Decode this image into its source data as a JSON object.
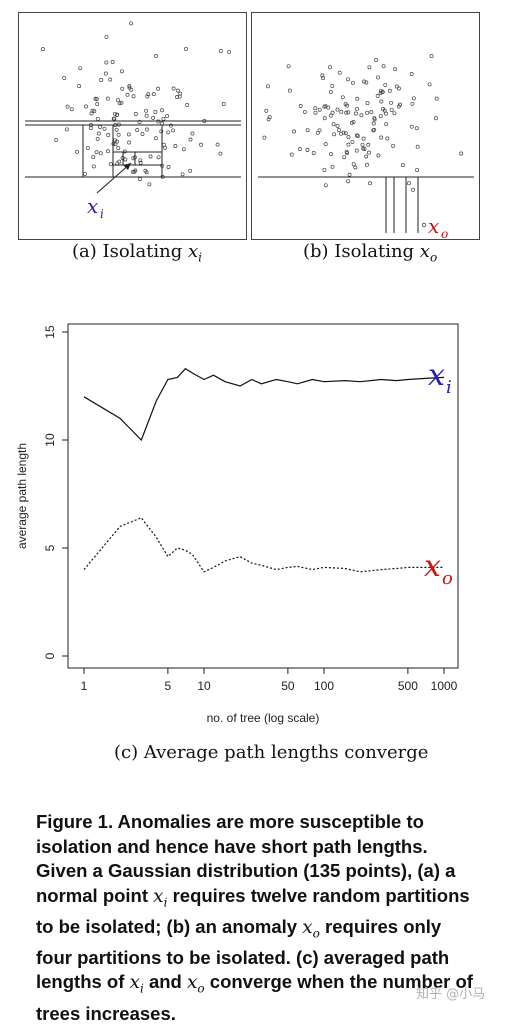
{
  "panels": {
    "a": {
      "point_label": "x",
      "point_sub": "i",
      "caption_prefix": "(a) Isolating ",
      "caption_var": "x",
      "caption_sub": "i",
      "label_color": "#2222aa"
    },
    "b": {
      "point_label": "x",
      "point_sub": "o",
      "caption_prefix": "(b) Isolating ",
      "caption_var": "x",
      "caption_sub": "o",
      "label_color": "#cc1111"
    }
  },
  "chart_data": {
    "type": "line",
    "xlabel": "no. of tree (log scale)",
    "ylabel": "average path length",
    "xscale": "log",
    "xlim": [
      1,
      1000
    ],
    "ylim": [
      0,
      15
    ],
    "xticks": [
      "1",
      "5",
      "10",
      "50",
      "100",
      "500",
      "1000"
    ],
    "xtick_values": [
      1,
      5,
      10,
      50,
      100,
      500,
      1000
    ],
    "yticks": [
      "0",
      "5",
      "10",
      "15"
    ],
    "ytick_values": [
      0,
      5,
      10,
      15
    ],
    "series": [
      {
        "name": "x_i",
        "style": "solid",
        "x": [
          1,
          2,
          3,
          4,
          5,
          6,
          7,
          8,
          10,
          12,
          15,
          20,
          25,
          30,
          40,
          50,
          60,
          80,
          100,
          150,
          200,
          300,
          400,
          500,
          700,
          1000
        ],
        "y": [
          12.0,
          11.0,
          10.0,
          11.8,
          12.8,
          12.9,
          13.3,
          13.1,
          12.8,
          13.0,
          12.7,
          12.5,
          12.8,
          12.6,
          12.8,
          12.7,
          12.6,
          12.8,
          12.7,
          12.75,
          12.7,
          12.8,
          12.75,
          12.8,
          12.85,
          12.9
        ]
      },
      {
        "name": "x_o",
        "style": "dashed",
        "x": [
          1,
          2,
          3,
          4,
          5,
          6,
          7,
          8,
          10,
          12,
          15,
          20,
          25,
          30,
          40,
          50,
          60,
          80,
          100,
          150,
          200,
          300,
          400,
          500,
          700,
          1000
        ],
        "y": [
          4.0,
          6.0,
          6.4,
          5.5,
          4.6,
          5.0,
          4.9,
          4.7,
          3.9,
          4.1,
          4.4,
          4.6,
          4.3,
          4.2,
          4.0,
          4.1,
          4.15,
          4.0,
          4.1,
          4.05,
          3.9,
          4.0,
          4.05,
          4.1,
          4.1,
          4.1
        ]
      }
    ],
    "labels": [
      {
        "text": "x",
        "sub": "i",
        "color": "#2222aa"
      },
      {
        "text": "x",
        "sub": "o",
        "color": "#cc1111"
      }
    ]
  },
  "caption_c": "(c) Average path lengths converge",
  "figure_text": {
    "p1": "Figure 1. Anomalies are more susceptible to isolation and hence have short path lengths. Given a Gaussian distribution (135 points), (a) a normal point ",
    "p2": " requires twelve random partitions to be isolated; (b) an anomaly ",
    "p3": " requires only four partitions to be isolated. (c) averaged path lengths of ",
    "p4": " and ",
    "p5": " converge when the number of trees increases.",
    "xi": "x",
    "xi_sub": "i",
    "xo": "x",
    "xo_sub": "o"
  },
  "watermark": "知乎 @小马"
}
